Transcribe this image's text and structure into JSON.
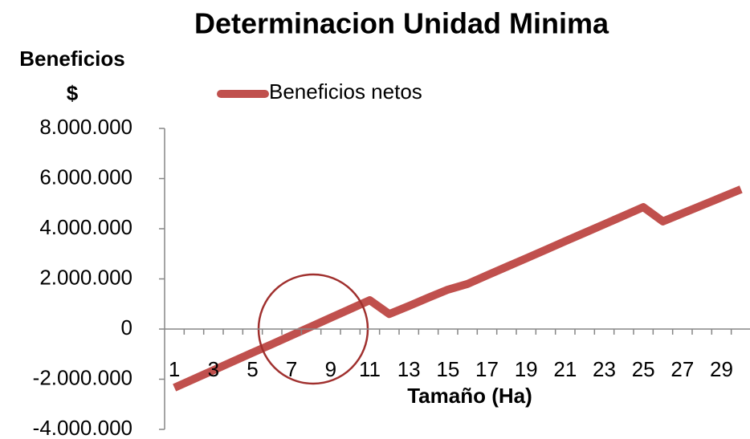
{
  "chart_data": {
    "type": "line",
    "title": "Determinacion Unidad Minima",
    "ylabel": [
      "Beneficios",
      "$"
    ],
    "xlabel": "Tamaño (Ha)",
    "categories": [
      1,
      null,
      3,
      null,
      5,
      null,
      7,
      null,
      9,
      null,
      11,
      null,
      13,
      null,
      15,
      null,
      17,
      null,
      19,
      null,
      21,
      null,
      23,
      null,
      25,
      null,
      27,
      null,
      29,
      null
    ],
    "series": [
      {
        "name": "Beneficios netos",
        "color": "#c0504d",
        "values": [
          -2340000,
          -1990000,
          -1640000,
          -1290000,
          -940000,
          -600000,
          -250000,
          100000,
          450000,
          800000,
          1150000,
          600000,
          920000,
          1250000,
          1570000,
          1800000,
          2140000,
          2480000,
          2820000,
          3160000,
          3500000,
          3840000,
          4180000,
          4520000,
          4860000,
          4290000,
          4610000,
          4930000,
          5250000,
          5570000
        ]
      }
    ],
    "ylim": [
      -4000000,
      8000000
    ],
    "yticks": [
      {
        "value": -4000000,
        "label": "-4.000.000"
      },
      {
        "value": -2000000,
        "label": "-2.000.000"
      },
      0,
      {
        "value": 2000000,
        "label": "2.000.000"
      },
      {
        "value": 4000000,
        "label": "4.000.000"
      },
      {
        "value": 6000000,
        "label": "6.000.000"
      },
      {
        "value": 8000000,
        "label": "8.000.000"
      }
    ],
    "grid": false,
    "legend": "top"
  }
}
